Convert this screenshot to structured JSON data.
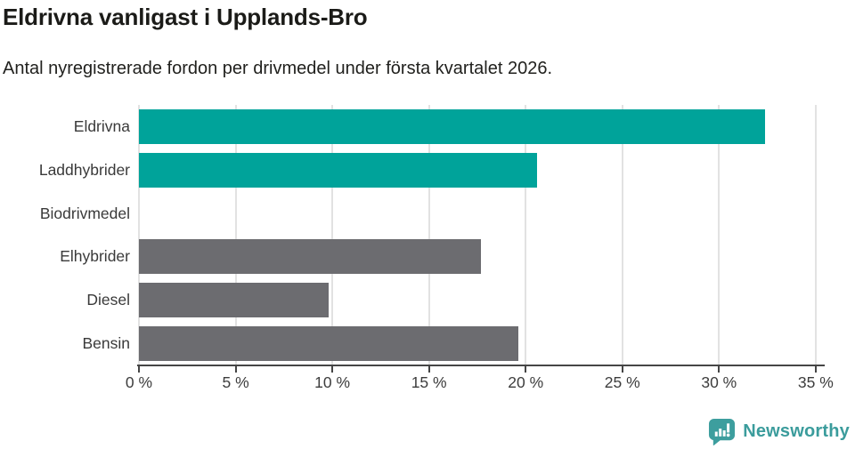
{
  "header": {
    "title": "Eldrivna vanligast i Upplands-Bro",
    "subtitle": "Antal nyregistrerade fordon per drivmedel under första kvartalet 2026."
  },
  "chart_data": {
    "type": "bar",
    "orientation": "horizontal",
    "title": "Eldrivna vanligast i Upplands-Bro",
    "subtitle": "Antal nyregistrerade fordon per drivmedel under första kvartalet 2026.",
    "categories": [
      "Eldrivna",
      "Laddhybrider",
      "Biodrivmedel",
      "Elhybrider",
      "Diesel",
      "Bensin"
    ],
    "values": [
      32.4,
      20.6,
      0,
      17.7,
      9.8,
      19.6
    ],
    "unit": "%",
    "xlabel": "",
    "ylabel": "",
    "xlim": [
      0,
      35
    ],
    "tick_step": 5,
    "tick_labels": [
      "0 %",
      "5 %",
      "10 %",
      "15 %",
      "20 %",
      "25 %",
      "30 %",
      "35 %"
    ],
    "grid": true,
    "legend": "none",
    "bar_colors": [
      "#00a39a",
      "#00a39a",
      "#6c6c70",
      "#6c6c70",
      "#6c6c70",
      "#6c6c70"
    ],
    "colors": {
      "highlight": "#00a39a",
      "default_bar": "#6c6c70",
      "gridline": "#e2e2e2",
      "axis": "#454545",
      "label_text": "#3a3a3a"
    }
  },
  "footer": {
    "brand": "Newsworthy",
    "brand_color": "#3b9c9c",
    "logo_icon": "newsworthy-speech-bubble-bar-chart-icon"
  }
}
